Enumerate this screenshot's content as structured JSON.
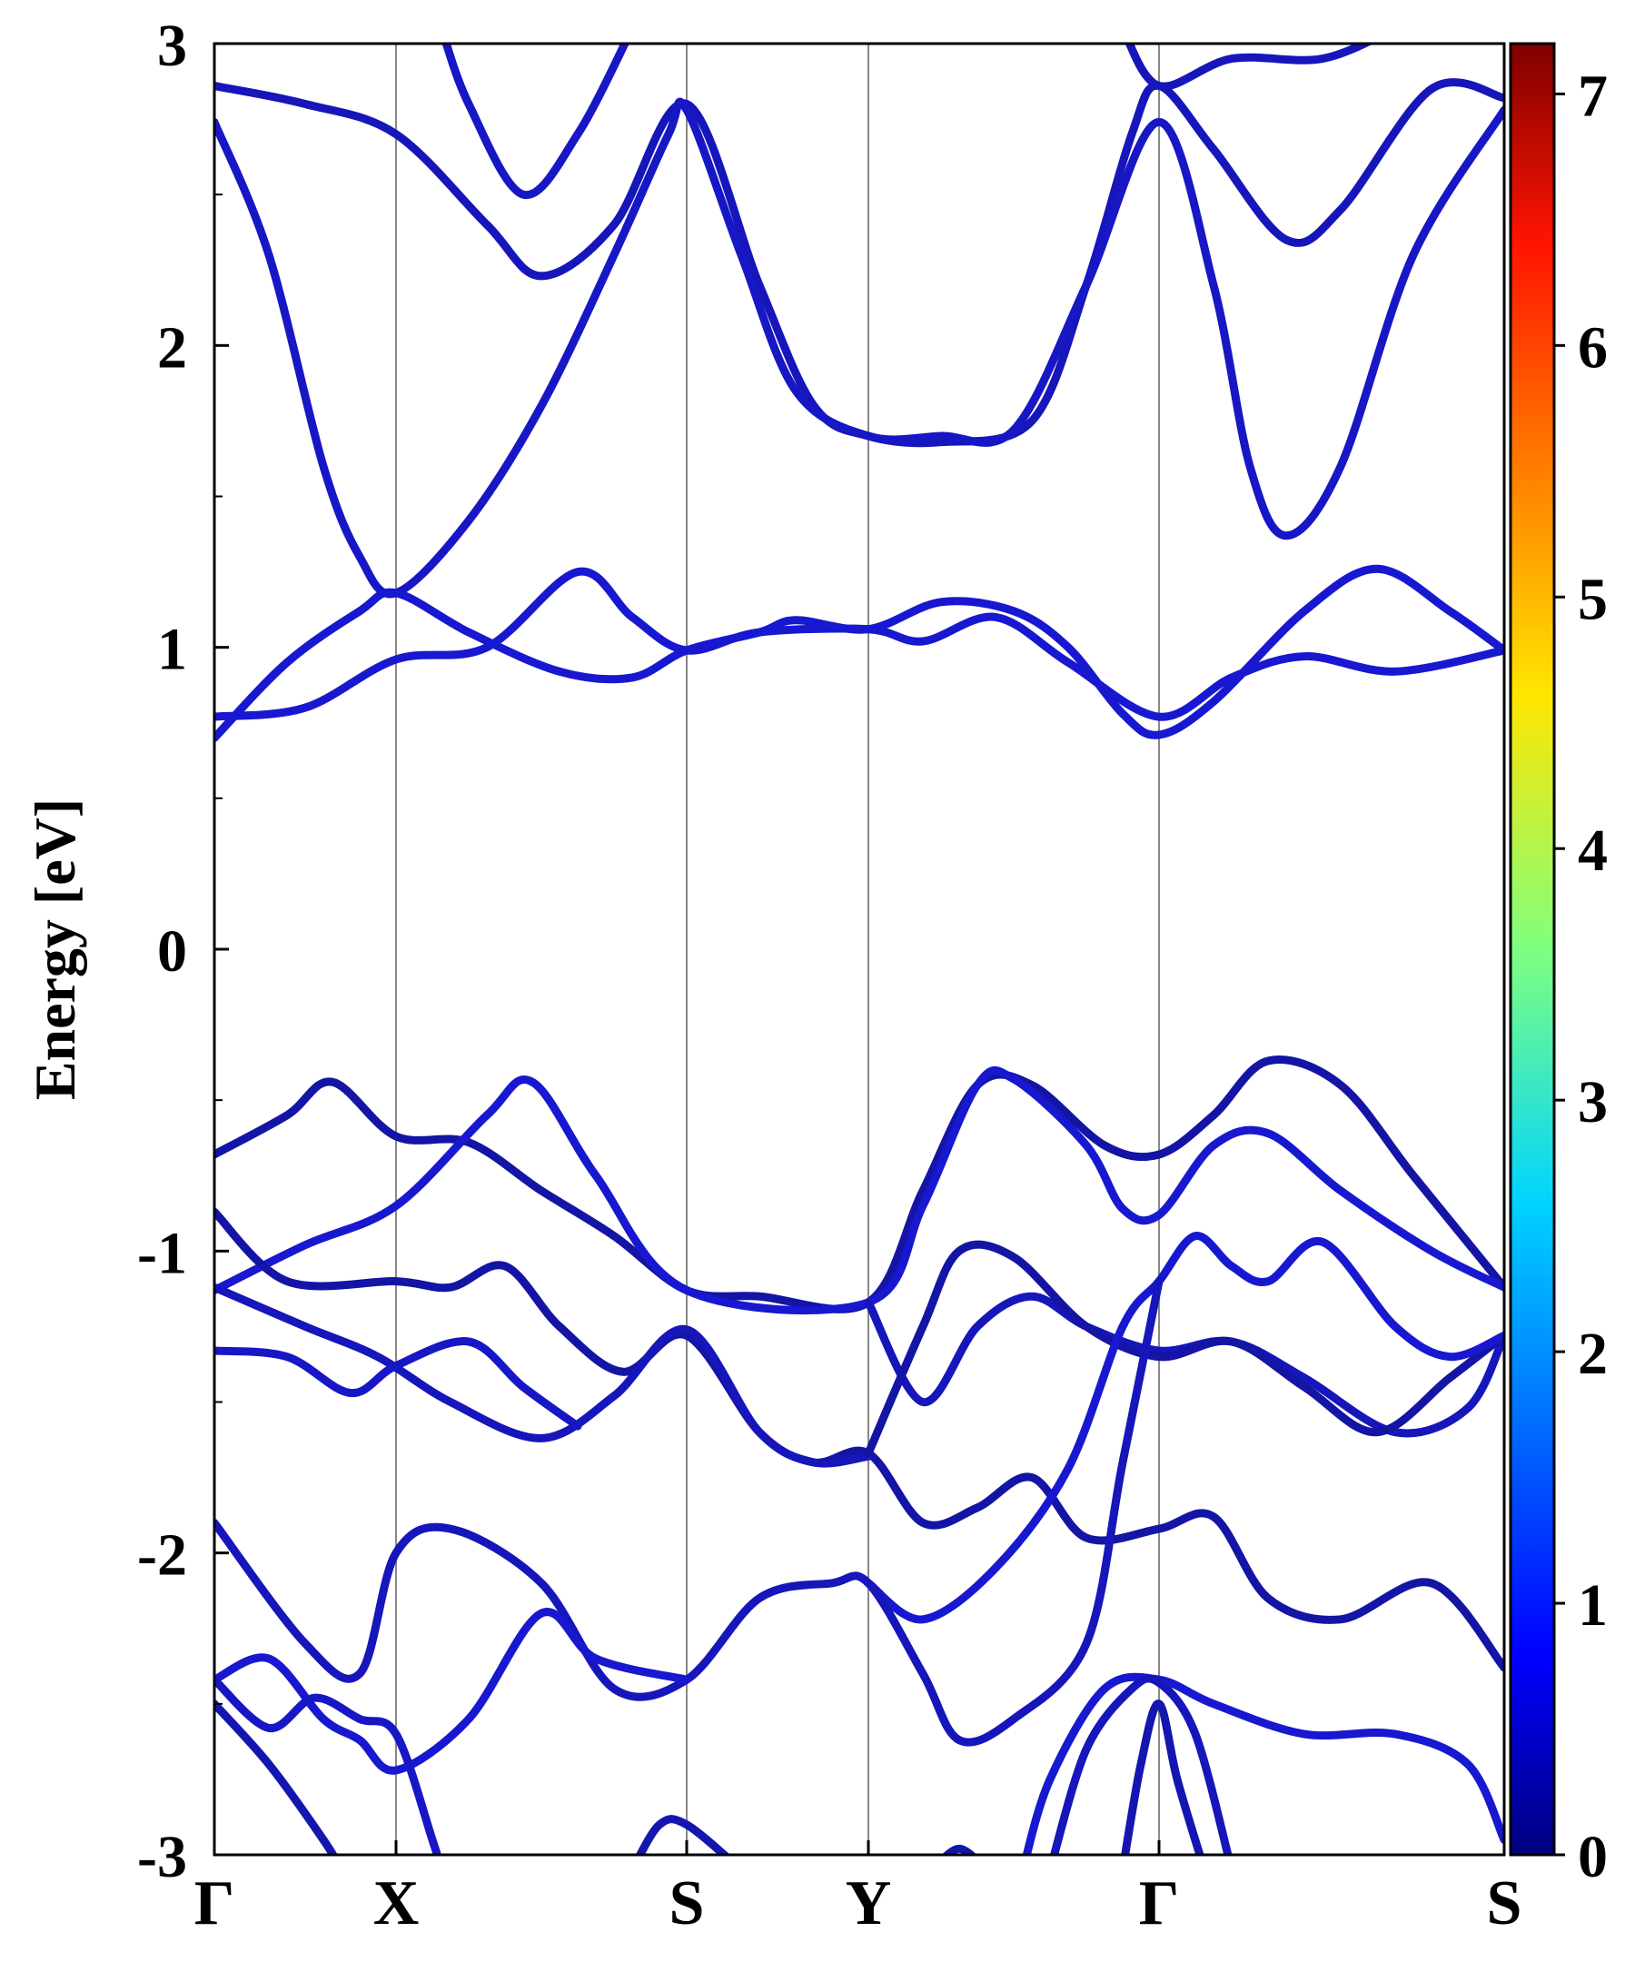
{
  "chart_data": {
    "type": "line",
    "title": "",
    "xlabel": "",
    "ylabel": "Energy [eV]",
    "ylim": [
      -3,
      3
    ],
    "yticks": [
      "-3",
      "-2",
      "-1",
      "0",
      "1",
      "2",
      "3"
    ],
    "kpath": {
      "labels": [
        "Γ",
        "X",
        "S",
        "Y",
        "Γ",
        "S"
      ],
      "positions": [
        0,
        1,
        2.6,
        3.6,
        5.2,
        7.1
      ]
    },
    "colorbar": {
      "range": [
        0,
        7.2
      ],
      "ticks": [
        "0",
        "1",
        "2",
        "3",
        "4",
        "5",
        "6",
        "7"
      ],
      "colormap": "jet"
    },
    "colors": {
      "band_dark": "#10107a",
      "band_bright": "#1a1ae6",
      "vline": "#888888"
    },
    "series": [
      {
        "level": 0.6,
        "points": [
          [
            0,
            2.86
          ],
          [
            0.5,
            2.8
          ],
          [
            1,
            2.7
          ],
          [
            1.5,
            2.4
          ],
          [
            1.8,
            2.23
          ],
          [
            2.2,
            2.4
          ],
          [
            2.6,
            2.8
          ],
          [
            3.0,
            2.2
          ],
          [
            3.3,
            1.8
          ],
          [
            3.6,
            1.7
          ],
          [
            4.0,
            1.68
          ],
          [
            4.5,
            1.75
          ],
          [
            4.8,
            2.2
          ],
          [
            5.05,
            2.7
          ],
          [
            5.2,
            2.86
          ],
          [
            5.5,
            2.65
          ],
          [
            5.9,
            2.35
          ],
          [
            6.2,
            2.45
          ],
          [
            6.7,
            2.85
          ],
          [
            7.1,
            2.82
          ]
        ]
      },
      {
        "level": 0.7,
        "points": [
          [
            0,
            2.74
          ],
          [
            0.3,
            2.3
          ],
          [
            0.6,
            1.6
          ],
          [
            0.8,
            1.3
          ],
          [
            1,
            1.18
          ],
          [
            1.4,
            1.42
          ],
          [
            1.8,
            1.8
          ],
          [
            2.2,
            2.3
          ],
          [
            2.5,
            2.7
          ],
          [
            2.6,
            2.78
          ],
          [
            2.9,
            2.3
          ],
          [
            3.2,
            1.85
          ],
          [
            3.6,
            1.7
          ],
          [
            4.0,
            1.7
          ],
          [
            4.4,
            1.72
          ],
          [
            4.8,
            2.2
          ],
          [
            5.2,
            2.74
          ],
          [
            5.5,
            2.2
          ],
          [
            5.7,
            1.6
          ],
          [
            5.9,
            1.37
          ],
          [
            6.2,
            1.6
          ],
          [
            6.6,
            2.3
          ],
          [
            7.1,
            2.78
          ]
        ]
      },
      {
        "level": 0.7,
        "points": [
          [
            1.25,
            3.05
          ],
          [
            1.4,
            2.8
          ],
          [
            1.7,
            2.5
          ],
          [
            2.0,
            2.7
          ],
          [
            2.3,
            3.05
          ]
        ]
      },
      {
        "level": 0.6,
        "points": [
          [
            5.0,
            3.05
          ],
          [
            5.2,
            2.86
          ],
          [
            5.6,
            2.95
          ],
          [
            6.1,
            2.95
          ],
          [
            6.5,
            3.05
          ]
        ]
      },
      {
        "level": 0.8,
        "points": [
          [
            0,
            0.7
          ],
          [
            0.4,
            0.95
          ],
          [
            0.8,
            1.12
          ],
          [
            1,
            1.18
          ],
          [
            1.4,
            1.05
          ],
          [
            1.9,
            0.92
          ],
          [
            2.3,
            0.9
          ],
          [
            2.6,
            0.99
          ],
          [
            3.0,
            1.05
          ],
          [
            3.2,
            1.09
          ],
          [
            3.6,
            1.06
          ],
          [
            4.0,
            1.15
          ],
          [
            4.4,
            1.12
          ],
          [
            4.7,
            1.0
          ],
          [
            5.0,
            0.78
          ],
          [
            5.2,
            0.71
          ],
          [
            5.5,
            0.82
          ],
          [
            6.0,
            1.12
          ],
          [
            6.4,
            1.26
          ],
          [
            6.8,
            1.12
          ],
          [
            7.1,
            0.99
          ]
        ]
      },
      {
        "level": 0.8,
        "points": [
          [
            0,
            0.77
          ],
          [
            0.5,
            0.8
          ],
          [
            1,
            0.96
          ],
          [
            1.5,
            1.0
          ],
          [
            2.0,
            1.25
          ],
          [
            2.3,
            1.1
          ],
          [
            2.6,
            0.99
          ],
          [
            3.0,
            1.05
          ],
          [
            3.6,
            1.06
          ],
          [
            3.9,
            1.02
          ],
          [
            4.3,
            1.1
          ],
          [
            4.7,
            0.95
          ],
          [
            5.2,
            0.77
          ],
          [
            5.6,
            0.9
          ],
          [
            6.0,
            0.97
          ],
          [
            6.5,
            0.92
          ],
          [
            7.1,
            0.99
          ]
        ]
      },
      {
        "level": 0.4,
        "points": [
          [
            0,
            -0.68
          ],
          [
            0.4,
            -0.55
          ],
          [
            0.65,
            -0.44
          ],
          [
            1,
            -0.62
          ],
          [
            1.4,
            -0.64
          ],
          [
            1.8,
            -0.8
          ],
          [
            2.2,
            -0.95
          ],
          [
            2.6,
            -1.13
          ],
          [
            3.0,
            -1.15
          ],
          [
            3.6,
            -1.17
          ],
          [
            3.9,
            -0.8
          ],
          [
            4.2,
            -0.45
          ],
          [
            4.5,
            -0.45
          ],
          [
            4.9,
            -0.65
          ],
          [
            5.2,
            -0.68
          ],
          [
            5.5,
            -0.55
          ],
          [
            5.8,
            -0.37
          ],
          [
            6.2,
            -0.45
          ],
          [
            6.6,
            -0.75
          ],
          [
            7.1,
            -1.12
          ]
        ]
      },
      {
        "level": 0.8,
        "points": [
          [
            0,
            -1.13
          ],
          [
            0.5,
            -0.98
          ],
          [
            1,
            -0.85
          ],
          [
            1.5,
            -0.55
          ],
          [
            1.75,
            -0.44
          ],
          [
            2.1,
            -0.75
          ],
          [
            2.6,
            -1.13
          ],
          [
            3.6,
            -1.17
          ],
          [
            3.9,
            -0.85
          ],
          [
            4.2,
            -0.45
          ],
          [
            4.4,
            -0.43
          ],
          [
            4.8,
            -0.65
          ],
          [
            5.0,
            -0.86
          ],
          [
            5.2,
            -0.88
          ],
          [
            5.5,
            -0.65
          ],
          [
            5.8,
            -0.61
          ],
          [
            6.2,
            -0.8
          ],
          [
            6.7,
            -1.0
          ],
          [
            7.1,
            -1.12
          ]
        ]
      },
      {
        "level": 0.4,
        "points": [
          [
            0,
            -0.87
          ],
          [
            0.4,
            -1.1
          ],
          [
            1,
            -1.1
          ],
          [
            1.3,
            -1.12
          ],
          [
            1.6,
            -1.05
          ],
          [
            1.9,
            -1.25
          ],
          [
            2.25,
            -1.4
          ],
          [
            2.6,
            -1.28
          ],
          [
            3.0,
            -1.6
          ],
          [
            3.3,
            -1.7
          ],
          [
            3.6,
            -1.67
          ],
          [
            3.9,
            -1.9
          ],
          [
            4.2,
            -1.85
          ],
          [
            4.5,
            -1.75
          ],
          [
            4.8,
            -1.95
          ],
          [
            5.2,
            -1.92
          ],
          [
            5.5,
            -1.88
          ],
          [
            5.8,
            -2.15
          ],
          [
            6.2,
            -2.22
          ],
          [
            6.7,
            -2.1
          ],
          [
            7.1,
            -2.38
          ]
        ]
      },
      {
        "level": 0.6,
        "points": [
          [
            0,
            -1.12
          ],
          [
            0.5,
            -1.25
          ],
          [
            0.9,
            -1.35
          ],
          [
            1.3,
            -1.5
          ],
          [
            1.8,
            -1.62
          ],
          [
            2.2,
            -1.48
          ],
          [
            2.6,
            -1.26
          ],
          [
            3.0,
            -1.6
          ],
          [
            3.3,
            -1.7
          ],
          [
            3.6,
            -1.68
          ]
        ]
      },
      {
        "level": 0.7,
        "points": [
          [
            0,
            -1.33
          ],
          [
            0.4,
            -1.35
          ],
          [
            0.75,
            -1.47
          ],
          [
            1,
            -1.38
          ],
          [
            1.4,
            -1.3
          ],
          [
            1.7,
            -1.45
          ],
          [
            2.0,
            -1.58
          ]
        ]
      },
      {
        "level": 0.6,
        "points": [
          [
            3.6,
            -1.17
          ],
          [
            3.9,
            -1.5
          ],
          [
            4.2,
            -1.25
          ],
          [
            4.5,
            -1.15
          ],
          [
            4.8,
            -1.25
          ],
          [
            5.2,
            -1.33
          ],
          [
            5.6,
            -1.3
          ],
          [
            6.0,
            -1.42
          ],
          [
            6.5,
            -1.6
          ],
          [
            6.9,
            -1.52
          ],
          [
            7.1,
            -1.28
          ]
        ]
      },
      {
        "level": 0.4,
        "points": [
          [
            3.6,
            -1.67
          ],
          [
            3.9,
            -1.25
          ],
          [
            4.1,
            -1.0
          ],
          [
            4.4,
            -1.02
          ],
          [
            4.8,
            -1.25
          ],
          [
            5.2,
            -1.35
          ],
          [
            5.6,
            -1.3
          ],
          [
            6.0,
            -1.45
          ],
          [
            6.4,
            -1.6
          ],
          [
            6.8,
            -1.42
          ],
          [
            7.1,
            -1.28
          ]
        ]
      },
      {
        "level": 0.8,
        "points": [
          [
            3.6,
            -2.1
          ],
          [
            3.9,
            -2.22
          ],
          [
            4.3,
            -2.05
          ],
          [
            4.7,
            -1.72
          ],
          [
            5.0,
            -1.25
          ],
          [
            5.2,
            -1.1
          ],
          [
            5.4,
            -0.95
          ],
          [
            5.6,
            -1.05
          ],
          [
            5.8,
            -1.1
          ],
          [
            6.1,
            -0.97
          ],
          [
            6.5,
            -1.25
          ],
          [
            6.8,
            -1.35
          ],
          [
            7.1,
            -1.28
          ]
        ]
      },
      {
        "level": 0.6,
        "points": [
          [
            0,
            -1.9
          ],
          [
            0.5,
            -2.3
          ],
          [
            0.8,
            -2.4
          ],
          [
            1,
            -2.0
          ],
          [
            1.3,
            -1.92
          ],
          [
            1.8,
            -2.1
          ],
          [
            2.2,
            -2.45
          ],
          [
            2.6,
            -2.42
          ],
          [
            3.0,
            -2.15
          ],
          [
            3.4,
            -2.1
          ],
          [
            3.6,
            -2.1
          ],
          [
            3.9,
            -2.4
          ],
          [
            4.1,
            -2.62
          ],
          [
            4.4,
            -2.55
          ],
          [
            4.8,
            -2.3
          ],
          [
            5.0,
            -1.7
          ],
          [
            5.2,
            -1.1
          ]
        ]
      },
      {
        "level": 0.8,
        "points": [
          [
            0,
            -2.42
          ],
          [
            0.3,
            -2.35
          ],
          [
            0.6,
            -2.55
          ],
          [
            0.8,
            -2.62
          ],
          [
            1,
            -2.72
          ],
          [
            1.4,
            -2.55
          ],
          [
            1.8,
            -2.2
          ],
          [
            2.1,
            -2.35
          ],
          [
            2.6,
            -2.42
          ]
        ]
      },
      {
        "level": 0.7,
        "points": [
          [
            0,
            -2.42
          ],
          [
            0.3,
            -2.58
          ],
          [
            0.55,
            -2.48
          ],
          [
            0.8,
            -2.55
          ],
          [
            1,
            -2.6
          ],
          [
            1.2,
            -2.95
          ],
          [
            1.25,
            -3.05
          ]
        ]
      },
      {
        "level": 0.5,
        "points": [
          [
            0,
            -2.5
          ],
          [
            0.3,
            -2.7
          ],
          [
            0.6,
            -2.95
          ],
          [
            0.7,
            -3.05
          ]
        ]
      },
      {
        "level": 0.5,
        "points": [
          [
            2.3,
            -3.05
          ],
          [
            2.45,
            -2.9
          ],
          [
            2.6,
            -2.9
          ],
          [
            2.9,
            -3.05
          ]
        ]
      },
      {
        "level": 0.4,
        "points": [
          [
            3.95,
            -3.05
          ],
          [
            4.1,
            -2.98
          ],
          [
            4.25,
            -3.05
          ]
        ]
      },
      {
        "level": 0.8,
        "points": [
          [
            4.45,
            -3.05
          ],
          [
            4.6,
            -2.75
          ],
          [
            4.9,
            -2.45
          ],
          [
            5.2,
            -2.42
          ],
          [
            5.5,
            -2.5
          ],
          [
            6.0,
            -2.6
          ],
          [
            6.5,
            -2.6
          ],
          [
            6.9,
            -2.7
          ],
          [
            7.1,
            -2.95
          ]
        ]
      },
      {
        "level": 0.6,
        "points": [
          [
            4.6,
            -3.05
          ],
          [
            4.8,
            -2.65
          ],
          [
            5.05,
            -2.45
          ],
          [
            5.2,
            -2.43
          ],
          [
            5.4,
            -2.6
          ],
          [
            5.6,
            -3.05
          ]
        ]
      },
      {
        "level": 0.5,
        "points": [
          [
            5.0,
            -3.05
          ],
          [
            5.1,
            -2.7
          ],
          [
            5.2,
            -2.5
          ],
          [
            5.3,
            -2.75
          ],
          [
            5.45,
            -3.05
          ]
        ]
      }
    ]
  }
}
